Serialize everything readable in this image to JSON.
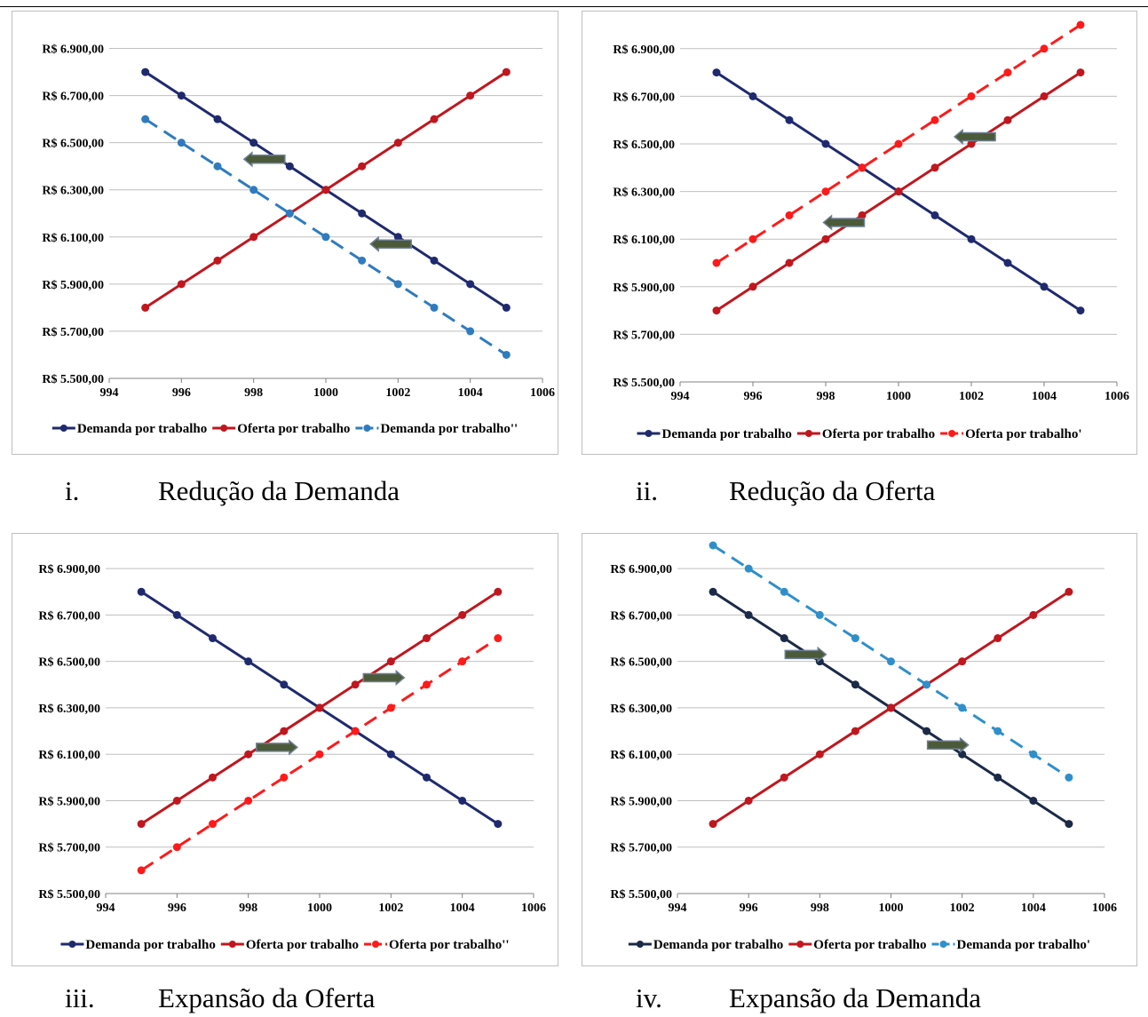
{
  "chart_data": [
    {
      "type": "line",
      "x": [
        995,
        996,
        997,
        998,
        999,
        1000,
        1001,
        1002,
        1003,
        1004,
        1005
      ],
      "xlim": [
        994,
        1006
      ],
      "xticks": [
        "994",
        "996",
        "998",
        "1000",
        "1002",
        "1004",
        "1006"
      ],
      "ylim": [
        5500,
        7000
      ],
      "yticks": [
        "R$ 5.500,00",
        "R$ 5.700,00",
        "R$ 5.900,00",
        "R$ 6.100,00",
        "R$ 6.300,00",
        "R$ 6.500,00",
        "R$ 6.700,00",
        "R$ 6.900,00"
      ],
      "grid": true,
      "legend": "bottom",
      "series": [
        {
          "name": "Demanda por trabalho",
          "values": [
            6800,
            6700,
            6600,
            6500,
            6400,
            6300,
            6200,
            6100,
            6000,
            5900,
            5800
          ],
          "color": "#1F2A6E",
          "dashed": false
        },
        {
          "name": "Oferta por trabalho",
          "values": [
            5800,
            5900,
            6000,
            6100,
            6200,
            6300,
            6400,
            6500,
            6600,
            6700,
            6800
          ],
          "color": "#C0171E",
          "dashed": false
        },
        {
          "name": "Demanda por trabalho''",
          "values": [
            6600,
            6500,
            6400,
            6300,
            6200,
            6100,
            6000,
            5900,
            5800,
            5700,
            5600
          ],
          "color": "#2F7BBE",
          "dashed": true
        }
      ],
      "arrows": [
        {
          "x": 998.3,
          "y": 6430,
          "direction": "left"
        },
        {
          "x": 1001.8,
          "y": 6070,
          "direction": "left"
        }
      ],
      "caption_number": "i.",
      "caption": "Redução da Demanda"
    },
    {
      "type": "line",
      "x": [
        995,
        996,
        997,
        998,
        999,
        1000,
        1001,
        1002,
        1003,
        1004,
        1005
      ],
      "xlim": [
        994,
        1006
      ],
      "xticks": [
        "994",
        "996",
        "998",
        "1000",
        "1002",
        "1004",
        "1006"
      ],
      "ylim": [
        5500,
        7000
      ],
      "yticks": [
        "R$ 5.500,00",
        "R$ 5.700,00",
        "R$ 5.900,00",
        "R$ 6.100,00",
        "R$ 6.300,00",
        "R$ 6.500,00",
        "R$ 6.700,00",
        "R$ 6.900,00"
      ],
      "grid": true,
      "legend": "bottom",
      "series": [
        {
          "name": "Demanda por trabalho",
          "values": [
            6800,
            6700,
            6600,
            6500,
            6400,
            6300,
            6200,
            6100,
            6000,
            5900,
            5800
          ],
          "color": "#1F2A6E",
          "dashed": false
        },
        {
          "name": "Oferta por trabalho",
          "values": [
            5800,
            5900,
            6000,
            6100,
            6200,
            6300,
            6400,
            6500,
            6600,
            6700,
            6800
          ],
          "color": "#C0171E",
          "dashed": false
        },
        {
          "name": "Oferta por trabalho'",
          "values": [
            6000,
            6100,
            6200,
            6300,
            6400,
            6500,
            6600,
            6700,
            6800,
            6900,
            7000
          ],
          "color": "#FF1A1A",
          "dashed": true
        }
      ],
      "arrows": [
        {
          "x": 1002.1,
          "y": 6530,
          "direction": "left"
        },
        {
          "x": 998.5,
          "y": 6170,
          "direction": "left"
        }
      ],
      "caption_number": "ii.",
      "caption": "Redução da Oferta"
    },
    {
      "type": "line",
      "x": [
        995,
        996,
        997,
        998,
        999,
        1000,
        1001,
        1002,
        1003,
        1004,
        1005
      ],
      "xlim": [
        994,
        1006
      ],
      "xticks": [
        "994",
        "996",
        "998",
        "1000",
        "1002",
        "1004",
        "1006"
      ],
      "ylim": [
        5500,
        7000
      ],
      "yticks": [
        "R$ 5.500,00",
        "R$ 5.700,00",
        "R$ 5.900,00",
        "R$ 6.100,00",
        "R$ 6.300,00",
        "R$ 6.500,00",
        "R$ 6.700,00",
        "R$ 6.900,00"
      ],
      "grid": true,
      "legend": "bottom",
      "series": [
        {
          "name": "Demanda por trabalho",
          "values": [
            6800,
            6700,
            6600,
            6500,
            6400,
            6300,
            6200,
            6100,
            6000,
            5900,
            5800
          ],
          "color": "#1F2A6E",
          "dashed": false
        },
        {
          "name": "Oferta por trabalho",
          "values": [
            5800,
            5900,
            6000,
            6100,
            6200,
            6300,
            6400,
            6500,
            6600,
            6700,
            6800
          ],
          "color": "#C0171E",
          "dashed": false
        },
        {
          "name": "Oferta por trabalho''",
          "values": [
            5600,
            5700,
            5800,
            5900,
            6000,
            6100,
            6200,
            6300,
            6400,
            6500,
            6600
          ],
          "color": "#FF1A1A",
          "dashed": true
        }
      ],
      "arrows": [
        {
          "x": 1001.8,
          "y": 6430,
          "direction": "right"
        },
        {
          "x": 998.8,
          "y": 6130,
          "direction": "right"
        }
      ],
      "caption_number": "iii.",
      "caption": "Expansão da Oferta"
    },
    {
      "type": "line",
      "x": [
        995,
        996,
        997,
        998,
        999,
        1000,
        1001,
        1002,
        1003,
        1004,
        1005
      ],
      "xlim": [
        994,
        1006
      ],
      "xticks": [
        "994",
        "996",
        "998",
        "1000",
        "1002",
        "1004",
        "1006"
      ],
      "ylim": [
        5500,
        7000
      ],
      "yticks": [
        "R$ 5.500,00",
        "R$ 5.700,00",
        "R$ 5.900,00",
        "R$ 6.100,00",
        "R$ 6.300,00",
        "R$ 6.500,00",
        "R$ 6.700,00",
        "R$ 6.900,00"
      ],
      "grid": true,
      "legend": "bottom",
      "series": [
        {
          "name": "Demanda por trabalho",
          "values": [
            6800,
            6700,
            6600,
            6500,
            6400,
            6300,
            6200,
            6100,
            6000,
            5900,
            5800
          ],
          "color": "#1B2A48",
          "dashed": false
        },
        {
          "name": "Oferta por trabalho",
          "values": [
            5800,
            5900,
            6000,
            6100,
            6200,
            6300,
            6400,
            6500,
            6600,
            6700,
            6800
          ],
          "color": "#C0171E",
          "dashed": false
        },
        {
          "name": "Demanda por trabalho'",
          "values": [
            7000,
            6900,
            6800,
            6700,
            6600,
            6500,
            6400,
            6300,
            6200,
            6100,
            6000
          ],
          "color": "#2F8FCB",
          "dashed": true
        }
      ],
      "arrows": [
        {
          "x": 997.6,
          "y": 6530,
          "direction": "right"
        },
        {
          "x": 1001.6,
          "y": 6140,
          "direction": "right"
        }
      ],
      "caption_number": "iv.",
      "caption": "Expansão da Demanda"
    }
  ]
}
